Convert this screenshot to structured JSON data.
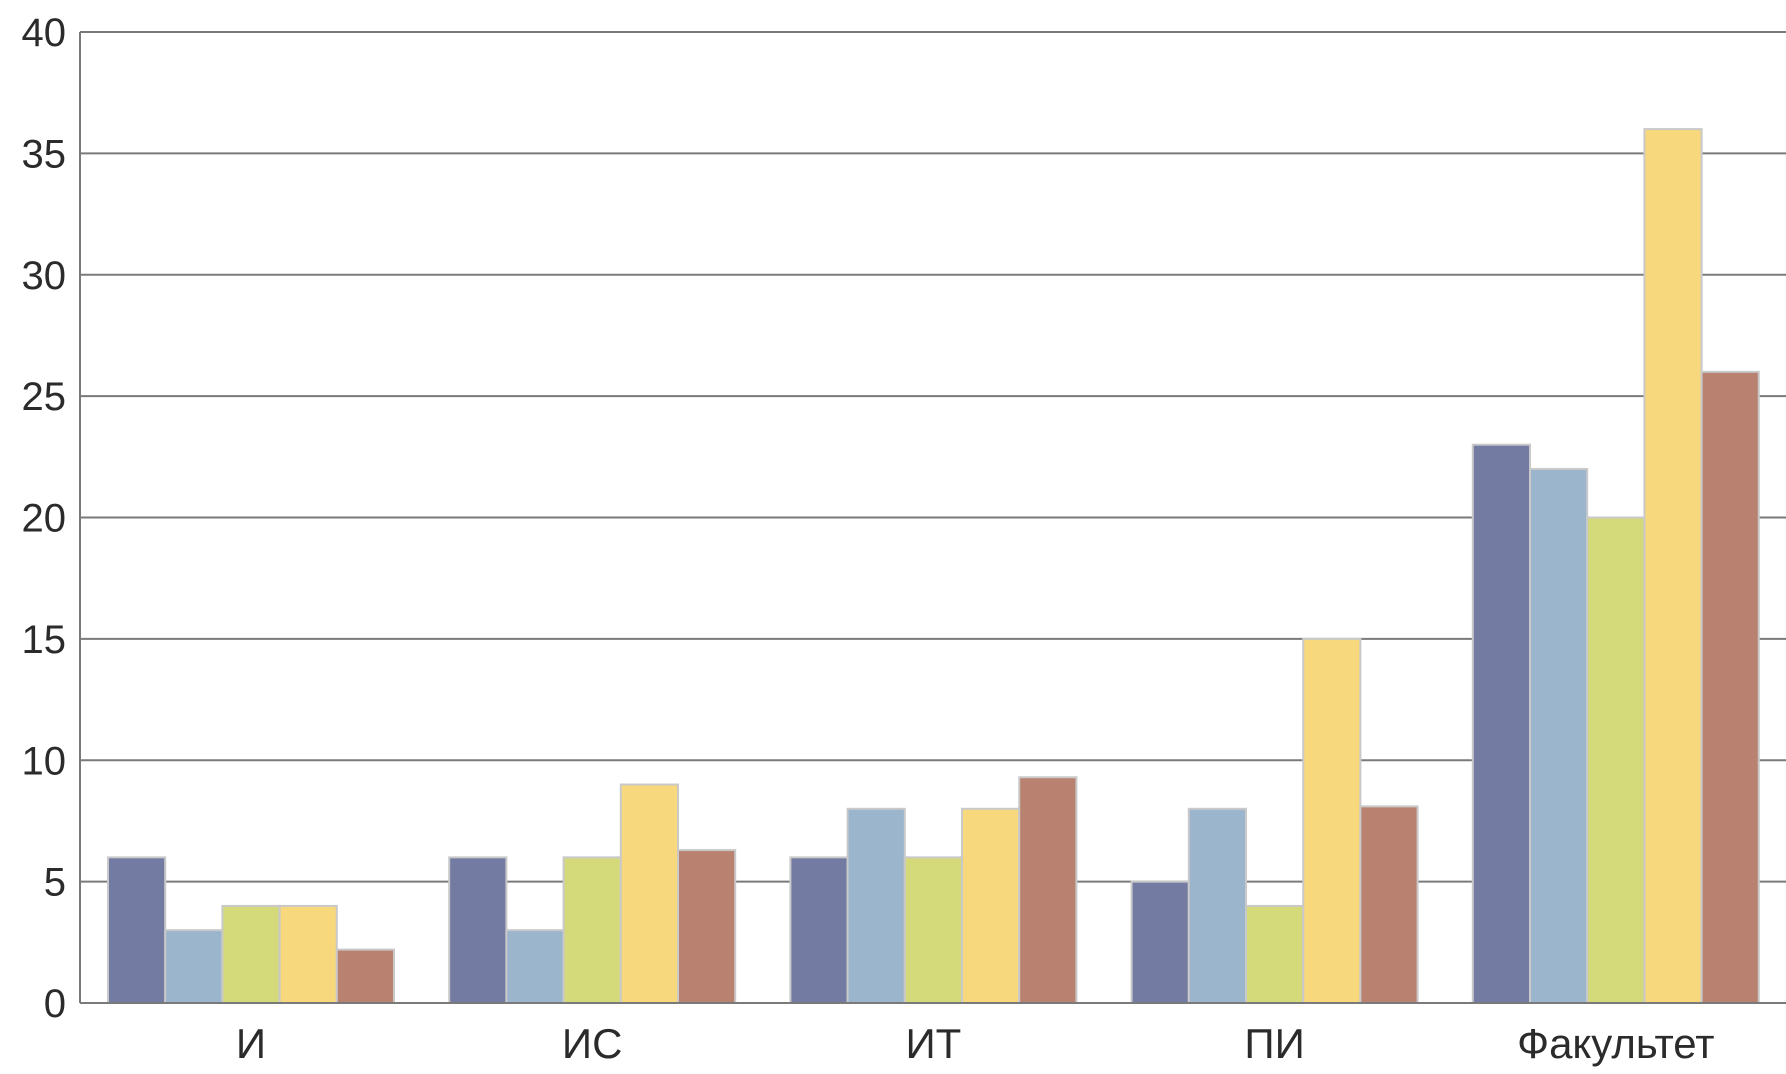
{
  "chart_data": {
    "type": "bar",
    "categories": [
      "И",
      "ИС",
      "ИТ",
      "ПИ",
      "Факультет"
    ],
    "series": [
      {
        "values": [
          6,
          6,
          6,
          5,
          23
        ]
      },
      {
        "values": [
          3,
          3,
          8,
          8,
          22
        ]
      },
      {
        "values": [
          4,
          6,
          6,
          4,
          20
        ]
      },
      {
        "values": [
          4,
          9,
          8,
          15,
          36
        ]
      },
      {
        "values": [
          2.2,
          6.3,
          9.3,
          8.1,
          26
        ]
      }
    ],
    "colors": [
      "#737ba3",
      "#9bb5cc",
      "#d4da7a",
      "#f7d87c",
      "#b98270"
    ],
    "title": "",
    "xlabel": "",
    "ylabel": "",
    "ylim": [
      0,
      40
    ],
    "yticks": [
      0,
      5,
      10,
      15,
      20,
      25,
      30,
      35,
      40
    ],
    "grid": true,
    "legend": "none"
  }
}
